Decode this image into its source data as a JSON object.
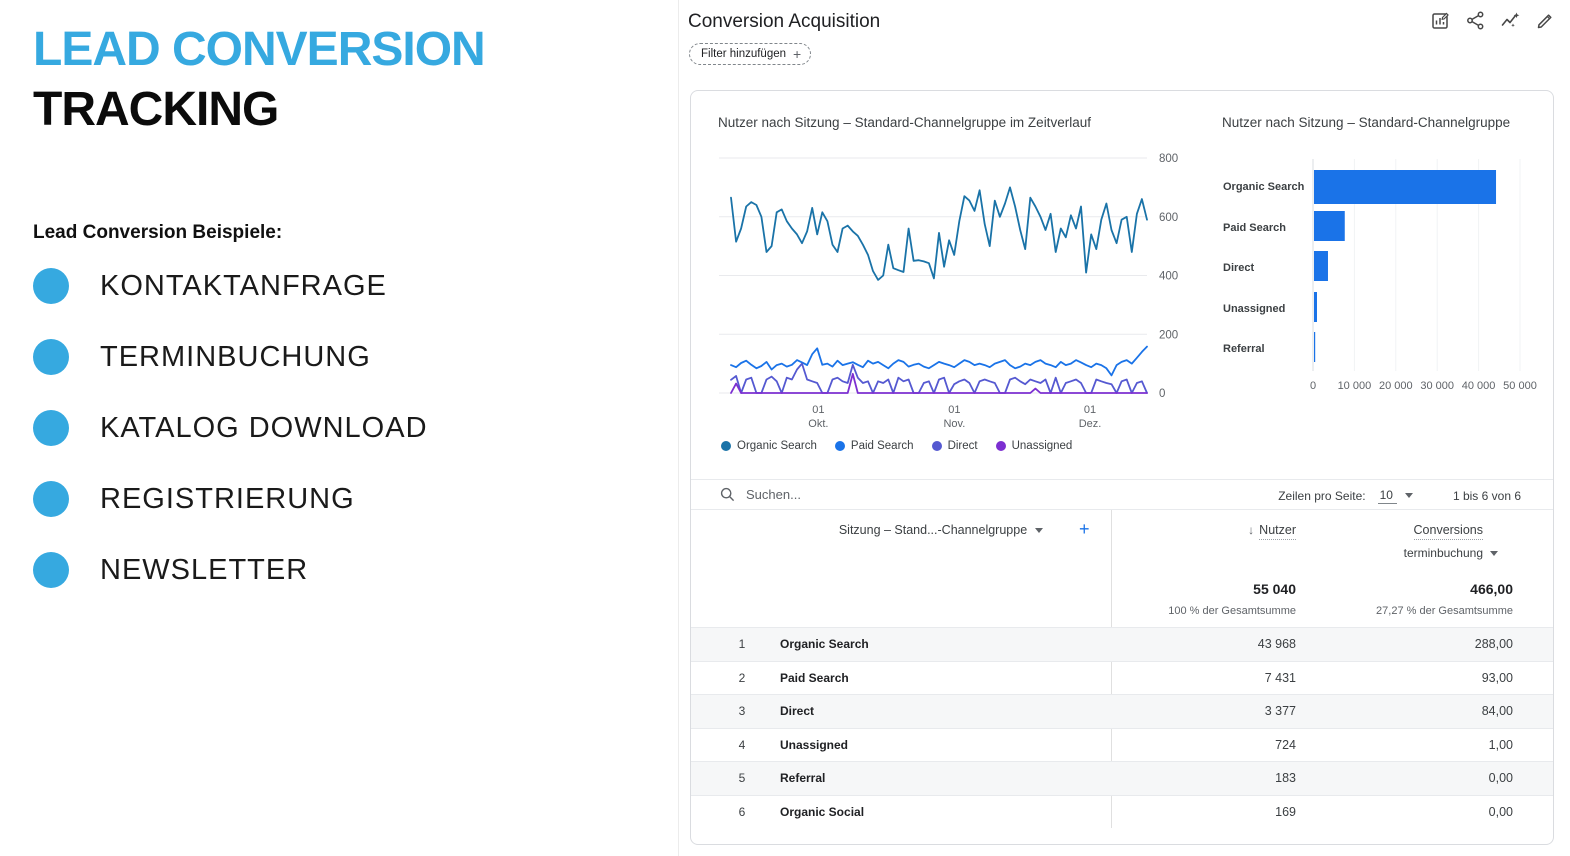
{
  "left_panel": {
    "title_line1": "LEAD CONVERSION",
    "title_line2": "TRACKING",
    "subtitle": "Lead Conversion Beispiele:",
    "bullets": [
      "KONTAKTANFRAGE",
      "TERMINBUCHUNG",
      "KATALOG DOWNLOAD",
      "REGISTRIERUNG",
      "NEWSLETTER"
    ],
    "accent_color": "#36A9E0"
  },
  "ga4": {
    "title": "Conversion Acquisition",
    "filter_chip_label": "Filter hinzufügen",
    "toolbar_icons": [
      "report-chart-icon",
      "share-icon",
      "insights-icon",
      "edit-icon"
    ],
    "line_chart_title": "Nutzer nach Sitzung – Standard-Channelgruppe im Zeitverlauf",
    "bar_chart_title": "Nutzer nach Sitzung – Standard-Channelgruppe",
    "table": {
      "search_placeholder": "Suchen...",
      "rows_per_page_label": "Zeilen pro Seite:",
      "rows_per_page_value": "10",
      "range_label": "1 bis 6 von 6",
      "dimension_header": "Sitzung – Stand...-Channelgruppe",
      "metric1_header": "Nutzer",
      "metric2_header": "Conversions",
      "metric2_event": "terminbuchung",
      "totals": {
        "nutzer": "55 040",
        "nutzer_pct": "100 % der Gesamtsumme",
        "conversions": "466,00",
        "conversions_pct": "27,27 % der Gesamtsumme"
      },
      "rows": [
        {
          "index": "1",
          "channel": "Organic Search",
          "nutzer": "43 968",
          "conversions": "288,00"
        },
        {
          "index": "2",
          "channel": "Paid Search",
          "nutzer": "7 431",
          "conversions": "93,00"
        },
        {
          "index": "3",
          "channel": "Direct",
          "nutzer": "3 377",
          "conversions": "84,00"
        },
        {
          "index": "4",
          "channel": "Unassigned",
          "nutzer": "724",
          "conversions": "1,00"
        },
        {
          "index": "5",
          "channel": "Referral",
          "nutzer": "183",
          "conversions": "0,00"
        },
        {
          "index": "6",
          "channel": "Organic Social",
          "nutzer": "169",
          "conversions": "0,00"
        }
      ]
    }
  },
  "chart_data": [
    {
      "type": "line",
      "title": "Nutzer nach Sitzung – Standard-Channelgruppe im Zeitverlauf",
      "ylim": [
        0,
        800
      ],
      "yticks": [
        800,
        600,
        400,
        200,
        0
      ],
      "xticks": [
        {
          "pos": 0.21,
          "line1": "01",
          "line2": "Okt."
        },
        {
          "pos": 0.537,
          "line1": "01",
          "line2": "Nov."
        },
        {
          "pos": 0.863,
          "line1": "01",
          "line2": "Dez."
        }
      ],
      "legend_position": "bottom",
      "series": [
        {
          "name": "Organic Search",
          "color": "#1A73A8",
          "values": [
            665,
            515,
            560,
            635,
            650,
            640,
            600,
            480,
            500,
            615,
            625,
            585,
            560,
            540,
            510,
            550,
            630,
            540,
            615,
            585,
            505,
            480,
            560,
            570,
            550,
            535,
            505,
            470,
            415,
            385,
            400,
            505,
            425,
            418,
            412,
            560,
            450,
            452,
            448,
            442,
            390,
            545,
            430,
            520,
            470,
            585,
            670,
            655,
            620,
            690,
            575,
            500,
            655,
            600,
            645,
            700,
            635,
            555,
            490,
            665,
            635,
            600,
            555,
            610,
            480,
            560,
            530,
            605,
            560,
            635,
            410,
            540,
            490,
            590,
            645,
            555,
            510,
            590,
            600,
            480,
            610,
            660,
            590
          ]
        },
        {
          "name": "Paid Search",
          "color": "#1A73E8",
          "values": [
            95,
            88,
            102,
            110,
            96,
            84,
            92,
            106,
            80,
            95,
            100,
            90,
            96,
            112,
            104,
            95,
            132,
            152,
            96,
            100,
            90,
            110,
            95,
            100,
            105,
            96,
            88,
            110,
            100,
            106,
            95,
            84,
            100,
            112,
            106,
            90,
            96,
            100,
            90,
            84,
            95,
            106,
            100,
            95,
            88,
            100,
            112,
            106,
            95,
            100,
            95,
            88,
            100,
            106,
            112,
            95,
            84,
            90,
            100,
            95,
            106,
            112,
            100,
            95,
            88,
            106,
            95,
            100,
            112,
            104,
            95,
            88,
            100,
            95,
            84,
            60,
            95,
            106,
            112,
            100,
            120,
            140,
            158
          ]
        },
        {
          "name": "Direct",
          "color": "#5559D1",
          "values": [
            45,
            58,
            0,
            46,
            52,
            0,
            0,
            46,
            56,
            40,
            0,
            52,
            46,
            80,
            100,
            46,
            40,
            34,
            0,
            0,
            46,
            52,
            40,
            34,
            96,
            52,
            34,
            40,
            0,
            40,
            34,
            46,
            0,
            52,
            40,
            46,
            0,
            0,
            34,
            40,
            0,
            46,
            52,
            0,
            30,
            40,
            46,
            34,
            0,
            40,
            46,
            40,
            34,
            0,
            0,
            46,
            52,
            40,
            30,
            46,
            40,
            34,
            46,
            0,
            52,
            0,
            34,
            40,
            46,
            34,
            0,
            0,
            46,
            40,
            34,
            30,
            0,
            40,
            46,
            0,
            34,
            40,
            0
          ]
        },
        {
          "name": "Unassigned",
          "color": "#7C2FD1",
          "values": [
            0,
            32,
            0,
            0,
            0,
            0,
            0,
            0,
            0,
            0,
            0,
            0,
            0,
            0,
            0,
            0,
            0,
            0,
            0,
            0,
            0,
            0,
            0,
            0,
            65,
            0,
            0,
            0,
            0,
            0,
            0,
            0,
            0,
            0,
            0,
            0,
            0,
            0,
            0,
            0,
            0,
            0,
            0,
            0,
            0,
            0,
            0,
            0,
            0,
            0,
            0,
            0,
            0,
            0,
            0,
            0,
            0,
            0,
            0,
            0,
            15,
            0,
            0,
            0,
            0,
            0,
            0,
            0,
            0,
            0,
            0,
            0,
            0,
            0,
            0,
            0,
            0,
            0,
            0,
            0,
            0,
            0,
            0
          ]
        }
      ]
    },
    {
      "type": "bar",
      "title": "Nutzer nach Sitzung – Standard-Channelgruppe",
      "orientation": "horizontal",
      "categories": [
        "Organic Search",
        "Paid Search",
        "Direct",
        "Unassigned",
        "Referral"
      ],
      "values": [
        43968,
        7431,
        3377,
        724,
        183
      ],
      "xmax": 50000,
      "xticks": [
        "0",
        "10 000",
        "20 000",
        "30 000",
        "40 000",
        "50 000"
      ],
      "color": "#1A73E8"
    }
  ]
}
